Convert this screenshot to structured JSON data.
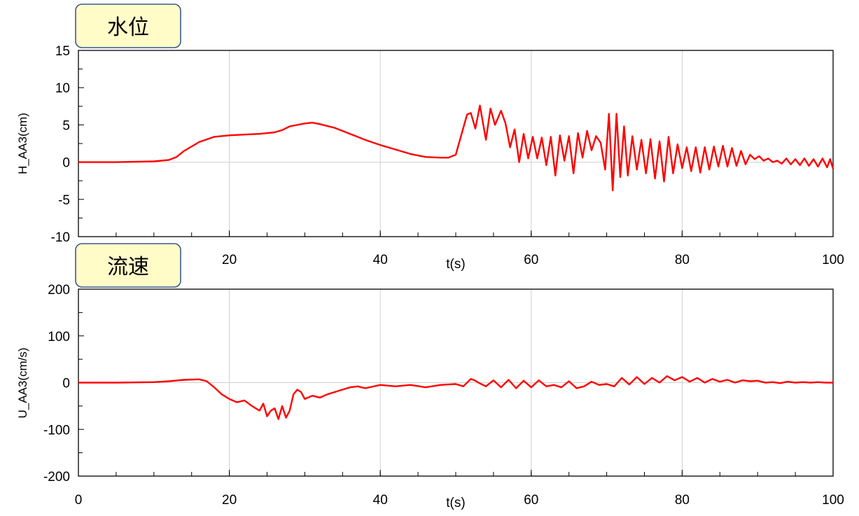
{
  "chart_data": [
    {
      "type": "line",
      "title": "水位",
      "xlabel": "t(s)",
      "ylabel": "H_AA3(cm)",
      "xlim": [
        0,
        100
      ],
      "ylim": [
        -10,
        15
      ],
      "x_ticks": [
        0,
        20,
        40,
        60,
        80,
        100
      ],
      "x_tick_labels": [
        "0",
        "20",
        "40",
        "60",
        "80",
        "100"
      ],
      "y_ticks": [
        -10,
        -5,
        0,
        5,
        10,
        15
      ],
      "y_tick_labels": [
        "-10",
        "-5",
        "0",
        "5",
        "10",
        "15"
      ],
      "grid": true,
      "line_color": "#ff0000",
      "series": [
        {
          "name": "H_AA3",
          "x": [
            0,
            5,
            10,
            12,
            13,
            14,
            16,
            18,
            20,
            22,
            24,
            26,
            27,
            28,
            30,
            31,
            32,
            34,
            36,
            38,
            40,
            42,
            44,
            46,
            48,
            49,
            50,
            50.7,
            51.5,
            52,
            52.6,
            53.2,
            54,
            54.6,
            55.2,
            56,
            56.6,
            57.2,
            57.8,
            58.4,
            59,
            59.6,
            60.2,
            60.8,
            61.4,
            62,
            62.6,
            63.2,
            63.8,
            64.4,
            65,
            65.6,
            66.2,
            66.8,
            67.4,
            68,
            68.6,
            69.2,
            69.8,
            70.3,
            70.8,
            71.3,
            71.8,
            72.3,
            72.8,
            73.4,
            74,
            74.6,
            75.2,
            75.8,
            76.4,
            77,
            77.6,
            78.2,
            78.8,
            79.4,
            80,
            80.6,
            81.2,
            81.8,
            82.4,
            83,
            83.6,
            84.2,
            84.8,
            85.4,
            86,
            86.6,
            87.2,
            87.8,
            88.4,
            89,
            89.6,
            90.2,
            90.8,
            91.4,
            92,
            92.6,
            93.2,
            93.8,
            94.4,
            95,
            95.6,
            96.2,
            96.8,
            97.4,
            98,
            98.6,
            99.2,
            99.6,
            100
          ],
          "values": [
            0,
            0,
            0.1,
            0.3,
            0.7,
            1.5,
            2.7,
            3.4,
            3.6,
            3.7,
            3.8,
            4.0,
            4.3,
            4.8,
            5.2,
            5.3,
            5.1,
            4.6,
            3.8,
            3.0,
            2.3,
            1.7,
            1.1,
            0.7,
            0.6,
            0.6,
            1.0,
            3.5,
            6.4,
            6.6,
            4.5,
            7.6,
            3.0,
            7.2,
            5.0,
            6.9,
            5.2,
            2.0,
            4.4,
            0.0,
            3.8,
            0.5,
            3.4,
            0.5,
            3.3,
            -0.4,
            3.4,
            -1.8,
            3.6,
            0.2,
            3.5,
            -1.5,
            3.9,
            0.6,
            4.2,
            1.6,
            3.5,
            2.6,
            -1.0,
            6.5,
            -3.8,
            6.5,
            -2.0,
            4.8,
            -1.8,
            3.5,
            -1.0,
            3.0,
            -1.5,
            3.1,
            -2.2,
            2.8,
            -2.6,
            3.4,
            -1.5,
            2.4,
            -0.8,
            2.0,
            -1.2,
            2.0,
            -1.4,
            2.0,
            -1.0,
            2.1,
            -0.6,
            2.2,
            -0.6,
            1.9,
            -0.5,
            1.5,
            -0.3,
            1.0,
            0.4,
            0.8,
            0.2,
            0.5,
            0.0,
            0.2,
            -0.2,
            0.5,
            -0.3,
            0.4,
            -0.4,
            0.5,
            -0.5,
            0.4,
            -0.6,
            0.5,
            -0.7,
            0.4,
            -0.9
          ]
        }
      ]
    },
    {
      "type": "line",
      "title": "流速",
      "xlabel": "t(s)",
      "ylabel": "U_AA3(cm/s)",
      "xlim": [
        0,
        100
      ],
      "ylim": [
        -200,
        200
      ],
      "x_ticks": [
        0,
        20,
        40,
        60,
        80,
        100
      ],
      "x_tick_labels": [
        "0",
        "20",
        "40",
        "60",
        "80",
        "100"
      ],
      "y_ticks": [
        -200,
        -100,
        0,
        100,
        200
      ],
      "y_tick_labels": [
        "-200",
        "-100",
        "0",
        "100",
        "200"
      ],
      "grid": true,
      "line_color": "#ff0000",
      "series": [
        {
          "name": "U_AA3",
          "x": [
            0,
            5,
            10,
            12,
            14,
            16,
            17,
            18,
            19,
            20,
            21,
            22,
            23,
            24,
            24.5,
            25,
            25.5,
            26,
            26.5,
            27,
            27.5,
            28,
            28.5,
            29,
            29.5,
            30,
            31,
            32,
            33,
            34,
            35,
            36,
            37,
            38,
            40,
            42,
            44,
            46,
            48,
            50,
            51,
            52,
            52.5,
            53,
            54,
            55,
            56,
            57,
            58,
            59,
            60,
            61,
            62,
            63,
            64,
            65,
            66,
            67,
            68,
            69,
            70,
            71,
            72,
            73,
            74,
            75,
            76,
            77,
            78,
            79,
            80,
            81,
            82,
            83,
            84,
            85,
            86,
            87,
            88,
            89,
            90,
            91,
            92,
            93,
            94,
            95,
            96,
            97,
            98,
            99,
            100
          ],
          "values": [
            0,
            0,
            1,
            3,
            6,
            7,
            3,
            -10,
            -25,
            -35,
            -42,
            -38,
            -50,
            -60,
            -45,
            -72,
            -60,
            -55,
            -78,
            -50,
            -75,
            -60,
            -25,
            -15,
            -20,
            -35,
            -28,
            -32,
            -25,
            -20,
            -15,
            -10,
            -8,
            -12,
            -5,
            -8,
            -5,
            -10,
            -5,
            -3,
            -8,
            8,
            5,
            0,
            -8,
            5,
            -10,
            6,
            -12,
            4,
            -10,
            5,
            -8,
            -5,
            -10,
            3,
            -12,
            -8,
            2,
            -5,
            -3,
            -8,
            10,
            -4,
            12,
            -3,
            10,
            0,
            14,
            5,
            12,
            2,
            10,
            0,
            8,
            2,
            6,
            0,
            5,
            3,
            4,
            0,
            1,
            -1,
            2,
            0,
            1,
            0,
            1,
            0,
            0
          ]
        }
      ]
    }
  ]
}
